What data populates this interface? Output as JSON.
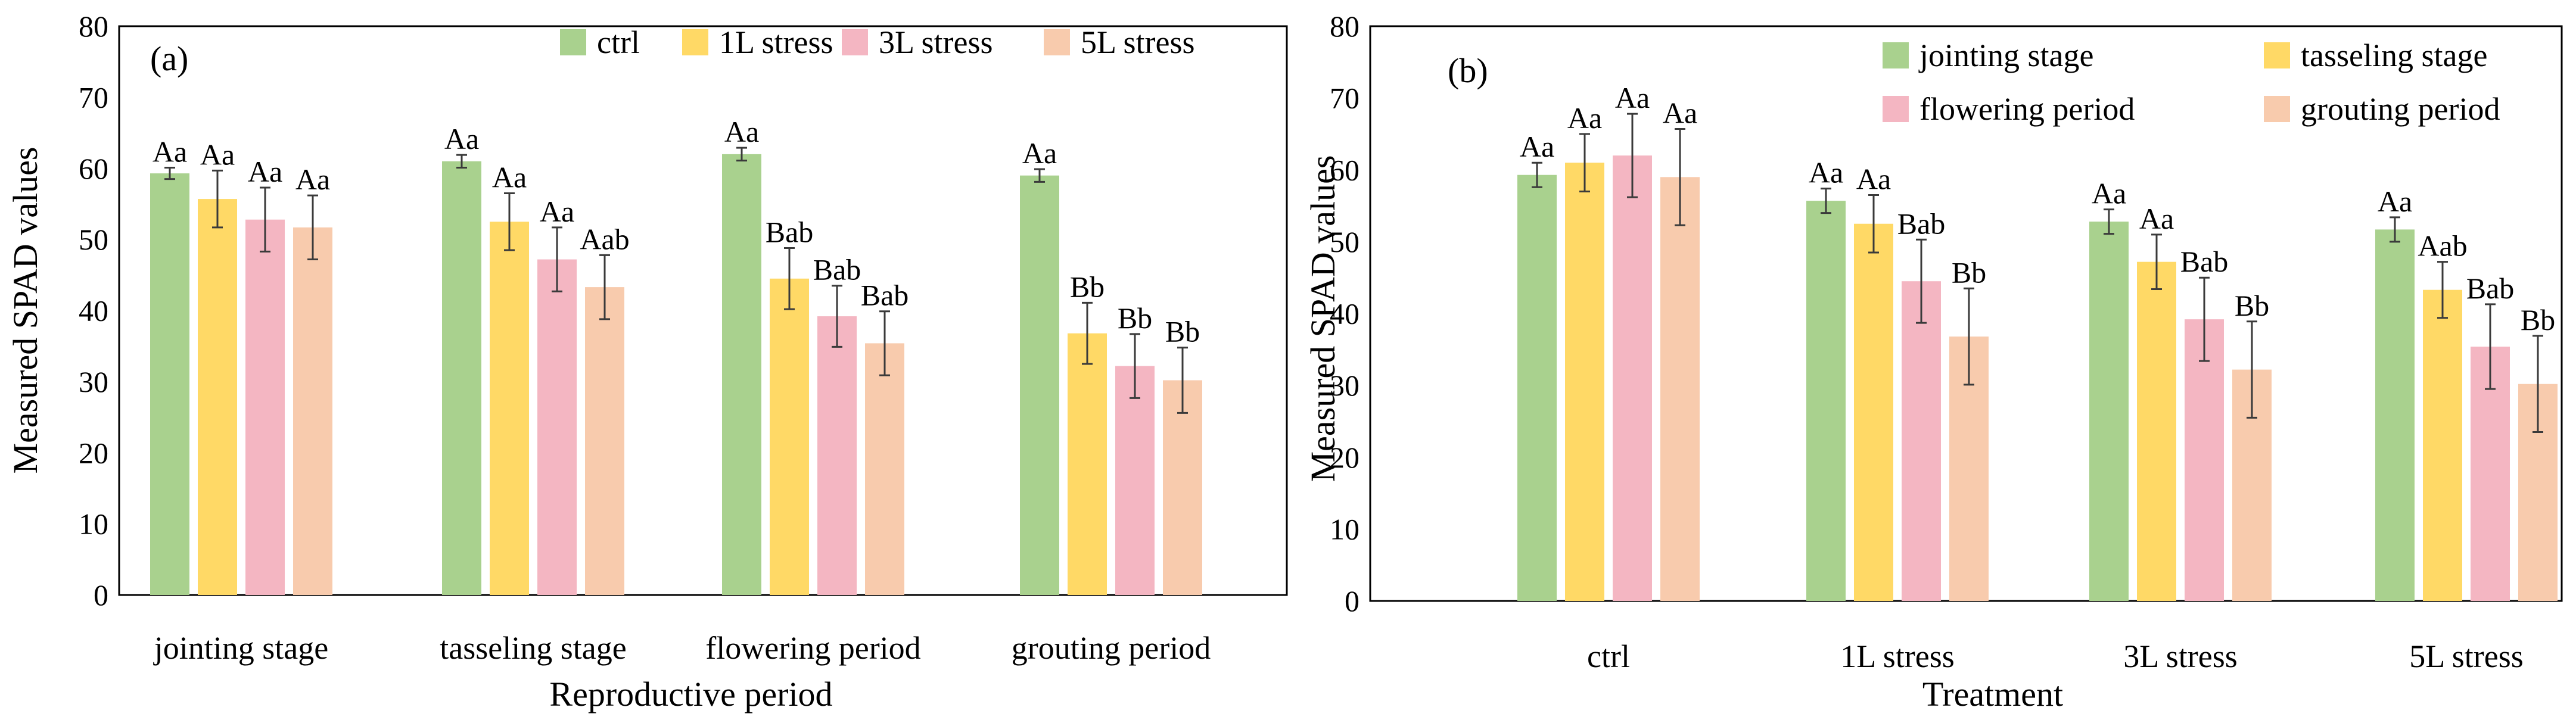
{
  "chart_data": [
    {
      "type": "bar",
      "panel_label": "(a)",
      "categories": [
        "jointing stage",
        "tasseling stage",
        "flowering period",
        "grouting period"
      ],
      "series": [
        {
          "name": "ctrl",
          "color": "#a9d18e",
          "values": [
            59.3,
            61.0,
            62.0,
            59.0
          ],
          "errors": [
            0.8,
            0.9,
            0.9,
            0.9
          ],
          "labels": [
            "Aa",
            "Aa",
            "Aa",
            "Aa"
          ]
        },
        {
          "name": "1L stress",
          "color": "#ffd966",
          "values": [
            55.7,
            52.5,
            44.5,
            36.8
          ],
          "errors": [
            4.0,
            4.0,
            4.3,
            4.3
          ],
          "labels": [
            "Aa",
            "Aa",
            "Bab",
            "Bb"
          ]
        },
        {
          "name": "3L stress",
          "color": "#f4b6c2",
          "values": [
            52.8,
            47.2,
            39.2,
            32.2
          ],
          "errors": [
            4.5,
            4.5,
            4.3,
            4.5
          ],
          "labels": [
            "Aa",
            "Aa",
            "Bab",
            "Bb"
          ]
        },
        {
          "name": "5L stress",
          "color": "#f8cbad",
          "values": [
            51.7,
            43.3,
            35.4,
            30.2
          ],
          "errors": [
            4.5,
            4.5,
            4.5,
            4.6
          ],
          "labels": [
            "Aa",
            "Aab",
            "Bab",
            "Bb"
          ]
        }
      ],
      "title": "",
      "xlabel": "Reproductive period",
      "ylabel": "Measured SPAD values",
      "ylim": [
        0,
        80
      ],
      "yticks": [
        0,
        10,
        20,
        30,
        40,
        50,
        60,
        70,
        80
      ],
      "legend_position": "top",
      "grid": false
    },
    {
      "type": "bar",
      "panel_label": "(b)",
      "categories": [
        "ctrl",
        "1L stress",
        "3L stress",
        "5L stress"
      ],
      "series": [
        {
          "name": "jointing stage",
          "color": "#a9d18e",
          "values": [
            59.3,
            55.7,
            52.8,
            51.7
          ],
          "errors": [
            1.7,
            1.7,
            1.7,
            1.7
          ],
          "labels": [
            "Aa",
            "Aa",
            "Aa",
            "Aa"
          ]
        },
        {
          "name": "tasseling stage",
          "color": "#ffd966",
          "values": [
            61.0,
            52.5,
            47.2,
            43.3
          ],
          "errors": [
            4.0,
            4.0,
            3.8,
            3.9
          ],
          "labels": [
            "Aa",
            "Aa",
            "Aa",
            "Aab"
          ]
        },
        {
          "name": "flowering period",
          "color": "#f4b6c2",
          "values": [
            62.0,
            44.5,
            39.2,
            35.4
          ],
          "errors": [
            5.8,
            5.8,
            5.8,
            5.9
          ],
          "labels": [
            "Aa",
            "Bab",
            "Bab",
            "Bab"
          ]
        },
        {
          "name": "grouting period",
          "color": "#f8cbad",
          "values": [
            59.0,
            36.8,
            32.2,
            30.2
          ],
          "errors": [
            6.7,
            6.7,
            6.7,
            6.7
          ],
          "labels": [
            "Aa",
            "Bb",
            "Bb",
            "Bb"
          ]
        }
      ],
      "title": "",
      "xlabel": "Treatment",
      "ylabel": "Measured SPAD values",
      "ylim": [
        0,
        80
      ],
      "yticks": [
        0,
        10,
        20,
        30,
        40,
        50,
        60,
        70,
        80
      ],
      "legend_position": "top-right",
      "grid": false
    }
  ]
}
